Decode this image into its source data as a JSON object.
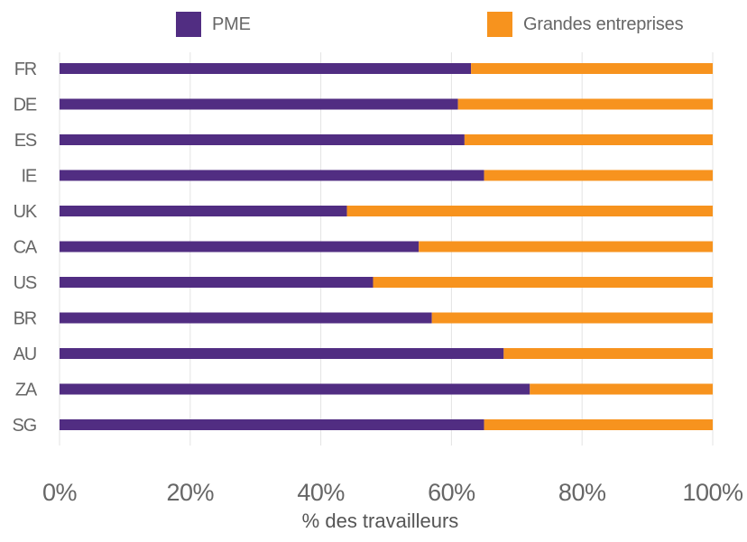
{
  "chart_data": {
    "type": "bar",
    "orientation": "horizontal",
    "stacked": true,
    "categories": [
      "FR",
      "DE",
      "ES",
      "IE",
      "UK",
      "CA",
      "US",
      "BR",
      "AU",
      "ZA",
      "SG"
    ],
    "series": [
      {
        "name": "PME",
        "color": "#512D82",
        "values": [
          63,
          61,
          62,
          65,
          44,
          55,
          48,
          57,
          68,
          72,
          65
        ]
      },
      {
        "name": "Grandes entreprises",
        "color": "#F7931E",
        "values": [
          37,
          39,
          38,
          35,
          56,
          45,
          52,
          43,
          32,
          28,
          35
        ]
      }
    ],
    "xlabel": "% des travailleurs",
    "ylabel": "",
    "xlim": [
      0,
      100
    ],
    "x_ticks": [
      "0%",
      "20%",
      "40%",
      "60%",
      "80%",
      "100%"
    ],
    "grid": "vertical",
    "legend_position": "top"
  }
}
